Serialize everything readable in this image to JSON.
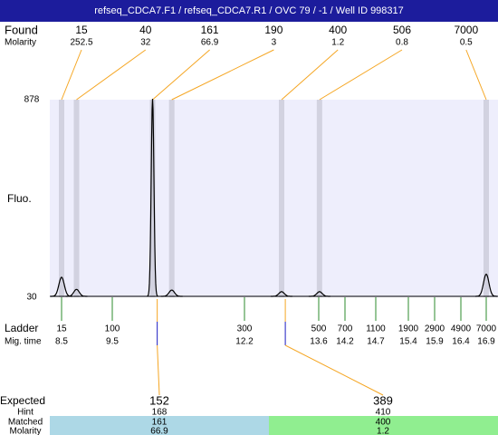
{
  "title": "refseq_CDCA7.F1 / refseq_CDCA7.R1 / OVC 79 / -1 / Well ID 998317",
  "found": {
    "label": "Found",
    "sublabel": "Molarity",
    "sizes": [
      15,
      40,
      161,
      190,
      400,
      506,
      7000
    ],
    "molarity": [
      252.5,
      32,
      66.9,
      3,
      1.2,
      0.8,
      0.5
    ],
    "heights": [
      112,
      60,
      878,
      57,
      50,
      50,
      125
    ]
  },
  "y_label": "Fluo.",
  "ylim": [
    30,
    878
  ],
  "yticks": [
    878,
    30
  ],
  "ladder": {
    "label": "Ladder",
    "sublabel": "Mig. time",
    "sizes": [
      15,
      100,
      300,
      500,
      700,
      1100,
      1900,
      2900,
      4900,
      7000
    ],
    "times": [
      8.5,
      9.5,
      12.2,
      13.6,
      14.2,
      14.7,
      15.4,
      15.9,
      16.4,
      16.9
    ]
  },
  "expected": {
    "label": "Expected",
    "hint_label": "Hint",
    "matched_label": "Matched",
    "molarity_label": "Molarity",
    "columns": [
      {
        "expected": 152,
        "hint": 168,
        "matched": 161,
        "molarity": 66.9
      },
      {
        "expected": 389,
        "hint": 410,
        "matched": 400,
        "molarity": 1.2
      }
    ]
  }
}
